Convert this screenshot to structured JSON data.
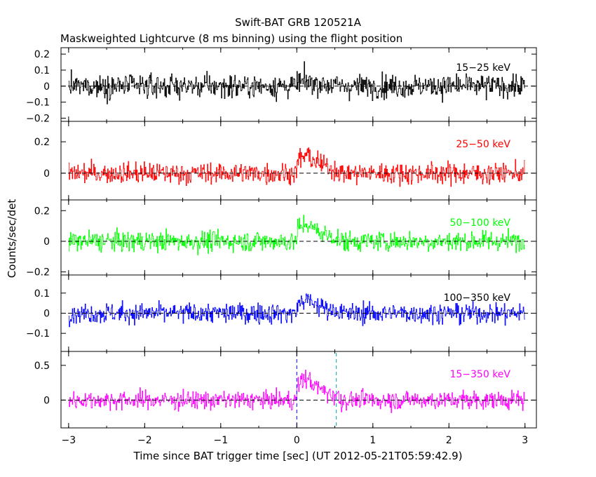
{
  "chart_data": {
    "type": "line",
    "title": "Swift-BAT GRB 120521A",
    "subtitle": "Maskweighted Lightcurve (8 ms binning) using the flight position",
    "xlabel": "Time since BAT trigger time [sec] (UT 2012-05-21T05:59:42.9)",
    "ylabel": "Counts/sec/det",
    "xlim": [
      -3.1,
      3.15
    ],
    "x_ticks": [
      "−3",
      "−2",
      "−1",
      "0",
      "1",
      "2",
      "3"
    ],
    "bin_width_sec": 0.008,
    "markers": [
      {
        "x": 0.0,
        "color": "#0000ff",
        "style": "dashed"
      },
      {
        "x": 0.52,
        "color": "#00aaaa",
        "style": "dashed"
      }
    ],
    "panels": [
      {
        "name": "15-25 keV",
        "label": "15−25 keV",
        "color": "#000000",
        "label_color": "#000000",
        "ylim": [
          -0.22,
          0.24
        ],
        "y_ticks": [
          "0.2",
          "0.1",
          "0",
          "−0.1",
          "−0.2"
        ],
        "y_tick_values": [
          0.2,
          0.1,
          0,
          -0.1,
          -0.2
        ],
        "noise_rms": 0.065,
        "burst_peak": 0.03
      },
      {
        "name": "25-50 keV",
        "label": "25−50 keV",
        "color": "#ff0000",
        "label_color": "#ff0000",
        "ylim": [
          -0.17,
          0.33
        ],
        "y_ticks": [
          "0.2",
          "0"
        ],
        "y_tick_values": [
          0.2,
          0
        ],
        "noise_rms": 0.06,
        "burst_peak": 0.12
      },
      {
        "name": "50-100 keV",
        "label": "50−100 keV",
        "color": "#00ff00",
        "label_color": "#00ff00",
        "ylim": [
          -0.22,
          0.27
        ],
        "y_ticks": [
          "0.2",
          "0",
          "−0.2"
        ],
        "y_tick_values": [
          0.2,
          0,
          -0.2
        ],
        "noise_rms": 0.06,
        "burst_peak": 0.12
      },
      {
        "name": "100-350 keV",
        "label": "100−350 keV",
        "color": "#0000ff",
        "label_color": "#000000",
        "ylim": [
          -0.19,
          0.19
        ],
        "y_ticks": [
          "0.1",
          "0",
          "−0.1"
        ],
        "y_tick_values": [
          0.1,
          0,
          -0.1
        ],
        "noise_rms": 0.045,
        "burst_peak": 0.07
      },
      {
        "name": "15-350 keV",
        "label": "15−350 keV",
        "color": "#ff00ff",
        "label_color": "#ff00ff",
        "ylim": [
          -0.4,
          0.7
        ],
        "y_ticks": [
          "0.5",
          "0"
        ],
        "y_tick_values": [
          0.5,
          0
        ],
        "noise_rms": 0.12,
        "burst_peak": 0.33
      }
    ]
  }
}
